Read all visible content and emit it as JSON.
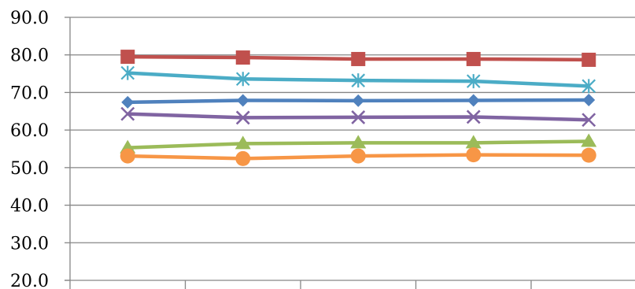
{
  "chart_data": {
    "type": "line",
    "title": "",
    "xlabel": "",
    "ylabel": "",
    "ylim": [
      20,
      90
    ],
    "ytick_step": 10,
    "ytick_labels": [
      "20.0",
      "30.0",
      "40.0",
      "50.0",
      "60.0",
      "70.0",
      "80.0",
      "90.0"
    ],
    "grid": true,
    "legend": "none",
    "categories": [
      "",
      "",
      "",
      "",
      ""
    ],
    "series": [
      {
        "color": "#C0504D",
        "marker": "square",
        "values": [
          79.5,
          79.3,
          78.9,
          78.9,
          78.7
        ]
      },
      {
        "color": "#4BACC6",
        "marker": "asterisk",
        "values": [
          75.2,
          73.6,
          73.2,
          73.0,
          71.7
        ]
      },
      {
        "color": "#4F81BD",
        "marker": "diamond",
        "values": [
          67.4,
          67.9,
          67.8,
          67.9,
          68.0
        ]
      },
      {
        "color": "#8064A2",
        "marker": "x",
        "values": [
          64.3,
          63.3,
          63.4,
          63.5,
          62.7
        ]
      },
      {
        "color": "#9BBB59",
        "marker": "triangle",
        "values": [
          55.3,
          56.4,
          56.6,
          56.6,
          57.0
        ]
      },
      {
        "color": "#F79646",
        "marker": "circle",
        "values": [
          53.1,
          52.4,
          53.1,
          53.4,
          53.3
        ]
      }
    ]
  }
}
